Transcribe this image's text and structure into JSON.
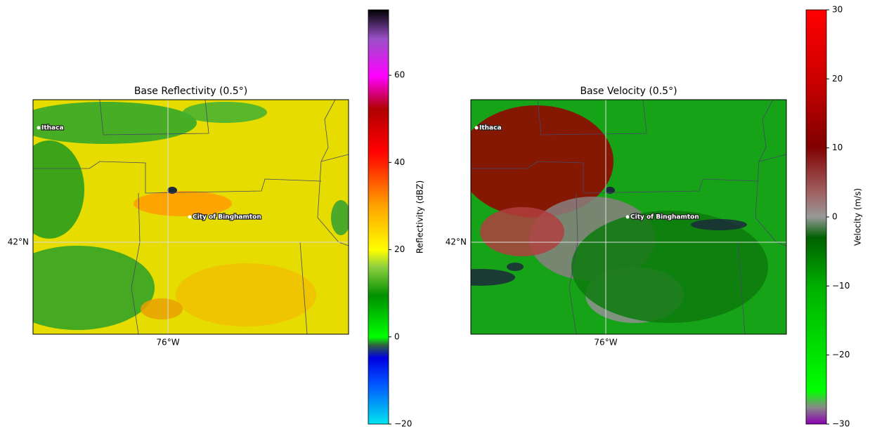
{
  "panels": [
    {
      "title": "Base Reflectivity (0.5°)",
      "lat_label": "42°N",
      "lon_label": "76°W",
      "cities": [
        "Ithaca",
        "City of Binghamton"
      ],
      "colorbar": {
        "label": "Reflectivity (dBZ)",
        "lim": [
          -20,
          75
        ],
        "ticks": [
          {
            "value": -20,
            "label": "−20"
          },
          0,
          20,
          40,
          60
        ]
      }
    },
    {
      "title": "Base Velocity (0.5°)",
      "lat_label": "42°N",
      "lon_label": "76°W",
      "cities": [
        "Ithaca",
        "City of Binghamton"
      ],
      "colorbar": {
        "label": "Velocity (m/s)",
        "lim": [
          -30,
          30
        ],
        "ticks": [
          {
            "value": -30,
            "label": "−30"
          },
          {
            "value": -20,
            "label": "−20"
          },
          {
            "value": -10,
            "label": "−10"
          },
          0,
          10,
          20,
          30
        ]
      }
    }
  ]
}
